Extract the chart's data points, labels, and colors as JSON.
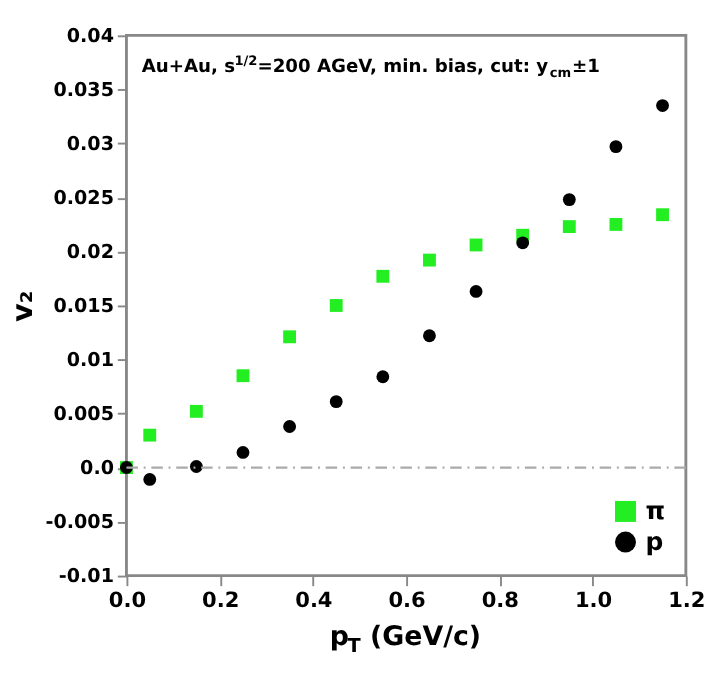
{
  "chart_data": {
    "type": "scatter",
    "x": [
      0.0,
      0.05,
      0.15,
      0.25,
      0.35,
      0.45,
      0.55,
      0.65,
      0.75,
      0.85,
      0.95,
      1.05,
      1.15
    ],
    "series": [
      {
        "name": "π",
        "color": "#22ee22",
        "marker": "square",
        "values": [
          0.0,
          0.003,
          0.0052,
          0.0085,
          0.0121,
          0.015,
          0.0177,
          0.0192,
          0.0206,
          0.0215,
          0.0223,
          0.0225,
          0.0234
        ]
      },
      {
        "name": "p",
        "color": "#000000",
        "marker": "circle",
        "values": [
          0.0,
          -0.0011,
          0.0001,
          0.0014,
          0.0038,
          0.0061,
          0.0084,
          0.0122,
          0.0163,
          0.0208,
          0.0248,
          0.0297,
          0.0335
        ]
      }
    ],
    "xlabel": "p$_{T}$ (GeV/c)",
    "ylabel": "v₂",
    "annotations": [
      "Au+Au, s$^{1/2}$=200 AGeV, min. bias, cut: y$_{cm}$±1"
    ],
    "xlim": [
      0.0,
      1.2
    ],
    "ylim": [
      -0.01,
      0.04
    ],
    "xticks": [
      {
        "value": 0.0,
        "label": "0.0"
      },
      0.2,
      0.4,
      0.6,
      0.8,
      {
        "value": 1.0,
        "label": "1.0"
      },
      1.2
    ],
    "yticks": [
      {
        "value": -0.01,
        "label": "-0.01"
      },
      -0.005,
      {
        "value": 0.0,
        "label": "0.0"
      },
      0.005,
      {
        "value": 0.01,
        "label": "0.01"
      },
      0.015,
      {
        "value": 0.02,
        "label": "0.02"
      },
      0.025,
      {
        "value": 0.03,
        "label": "0.03"
      },
      0.035,
      {
        "value": 0.04,
        "label": "0.04"
      }
    ],
    "ref_lines": [
      {
        "axis": "y",
        "value": 0.0,
        "color": "#aaaaaa",
        "line_style": "dashed"
      }
    ],
    "grid": false,
    "legend": "bottom right"
  }
}
